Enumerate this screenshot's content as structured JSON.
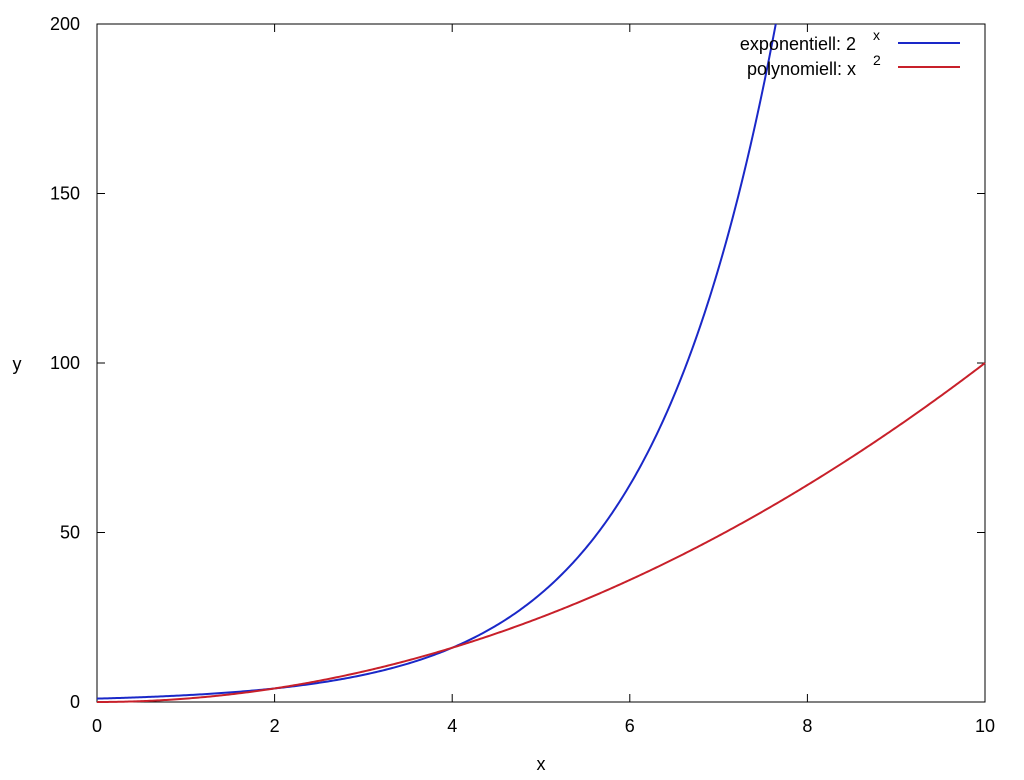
{
  "chart_data": {
    "type": "line",
    "xlabel": "x",
    "ylabel": "y",
    "xlim": [
      0,
      10
    ],
    "ylim": [
      0,
      200
    ],
    "xticks": [
      0,
      2,
      4,
      6,
      8,
      10
    ],
    "yticks": [
      0,
      50,
      100,
      150,
      200
    ],
    "grid": false,
    "legend_position": "top-right",
    "series": [
      {
        "name": "exponentiell: 2",
        "name_superscript": "x",
        "function": "2^x",
        "color": "#1a28c8",
        "x": [
          0,
          0.5,
          1,
          1.5,
          2,
          2.5,
          3,
          3.5,
          4,
          4.25,
          4.5,
          4.64
        ],
        "y": [
          1,
          1.41,
          2,
          2.83,
          4,
          5.66,
          8,
          11.31,
          16,
          19.03,
          22.63,
          24.9
        ]
      },
      {
        "name": "polynomiell: x",
        "name_superscript": "2",
        "function": "x^2",
        "color": "#c8202a",
        "x": [
          0,
          1,
          2,
          3,
          4,
          5,
          6,
          7,
          8,
          9,
          10
        ],
        "y": [
          0,
          1,
          4,
          9,
          16,
          25,
          36,
          49,
          64,
          81,
          100
        ]
      }
    ]
  }
}
